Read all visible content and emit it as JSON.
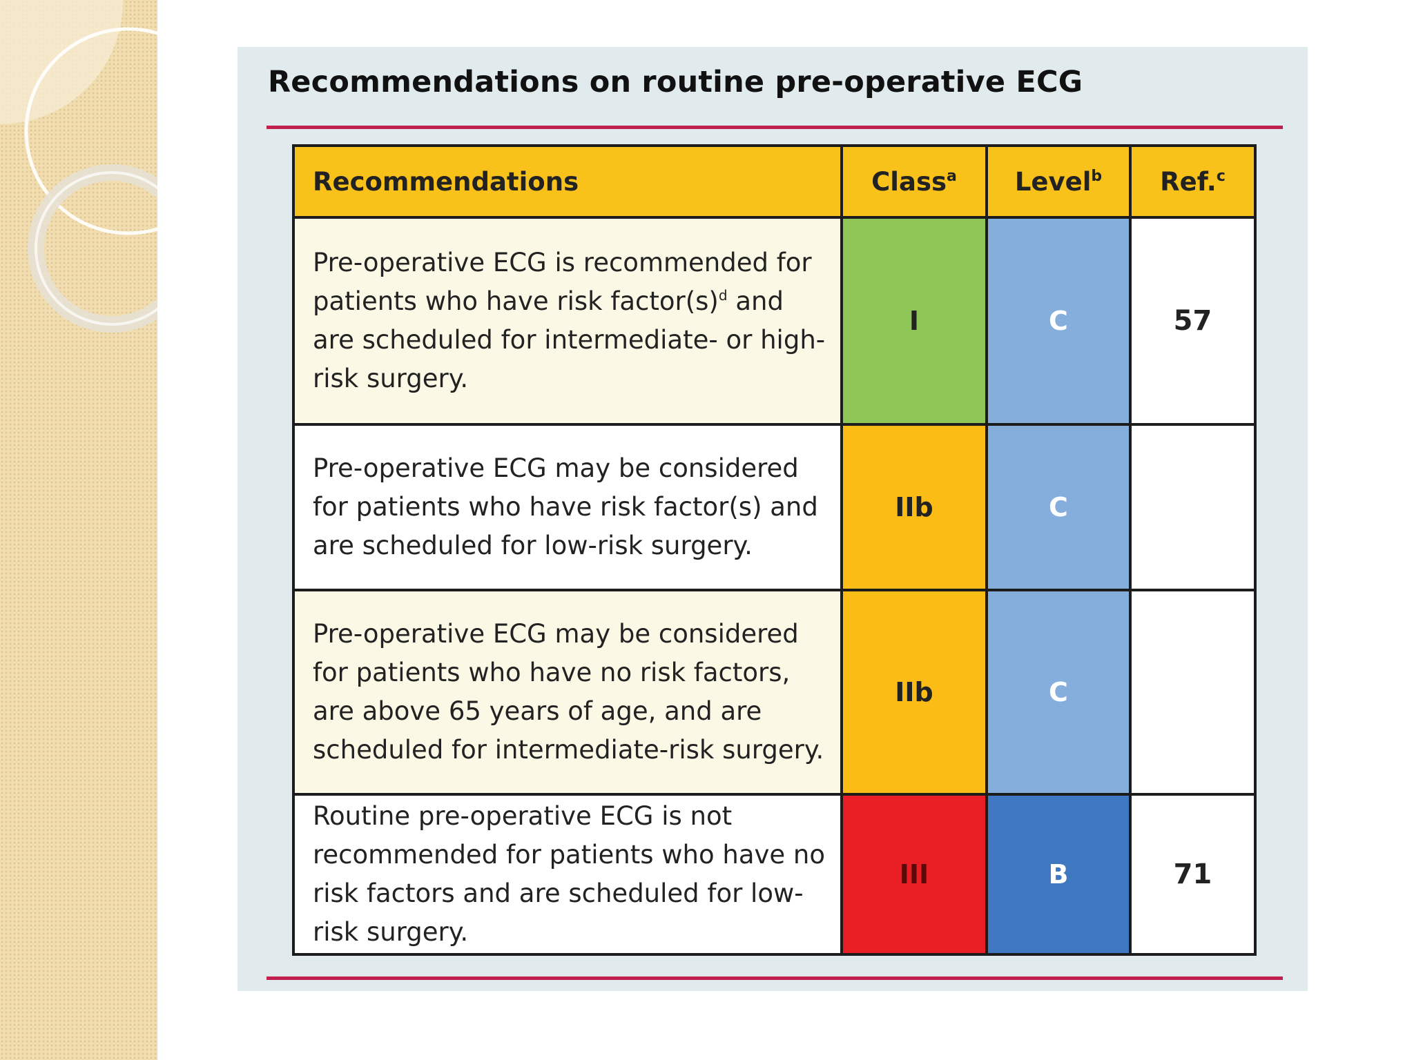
{
  "title": "Recommendations on routine pre-operative ECG",
  "table": {
    "headers": {
      "recommendations": "Recommendations",
      "class": "Class",
      "class_sup": "a",
      "level": "Level",
      "level_sup": "b",
      "ref": "Ref.",
      "ref_sup": "c"
    },
    "rows": [
      {
        "text_before": "Pre-operative ECG is recommended for patients who have risk factor(s)",
        "sup": "d",
        "text_after": " and are scheduled for intermediate- or high-risk surgery.",
        "class": "I",
        "level": "C",
        "ref": "57",
        "class_color": "#8fc457",
        "level_color": "#86aedd"
      },
      {
        "text_before": "Pre-operative ECG may be considered for patients who have risk factor(s) and are scheduled for low-risk surgery.",
        "sup": "",
        "text_after": "",
        "class": "IIb",
        "level": "C",
        "ref": "",
        "class_color": "#fbbd15",
        "level_color": "#86aedd"
      },
      {
        "text_before": "Pre-operative ECG may be considered for patients who have no risk factors, are above 65 years of age, and are scheduled for intermediate-risk surgery.",
        "sup": "",
        "text_after": "",
        "class": "IIb",
        "level": "C",
        "ref": "",
        "class_color": "#fbbd15",
        "level_color": "#86aedd"
      },
      {
        "text_before": "Routine pre-operative ECG is not recommended for patients who have no risk factors and are scheduled for low-risk surgery.",
        "sup": "",
        "text_after": "",
        "class": "III",
        "level": "B",
        "ref": "71",
        "class_color": "#ea1f25",
        "level_color": "#3f77c0"
      }
    ]
  },
  "colors": {
    "header_bg": "#f9c21b",
    "rule": "#c21f4e",
    "figure_bg": "#e1ebee",
    "side_strip": "#f1ddb0"
  }
}
